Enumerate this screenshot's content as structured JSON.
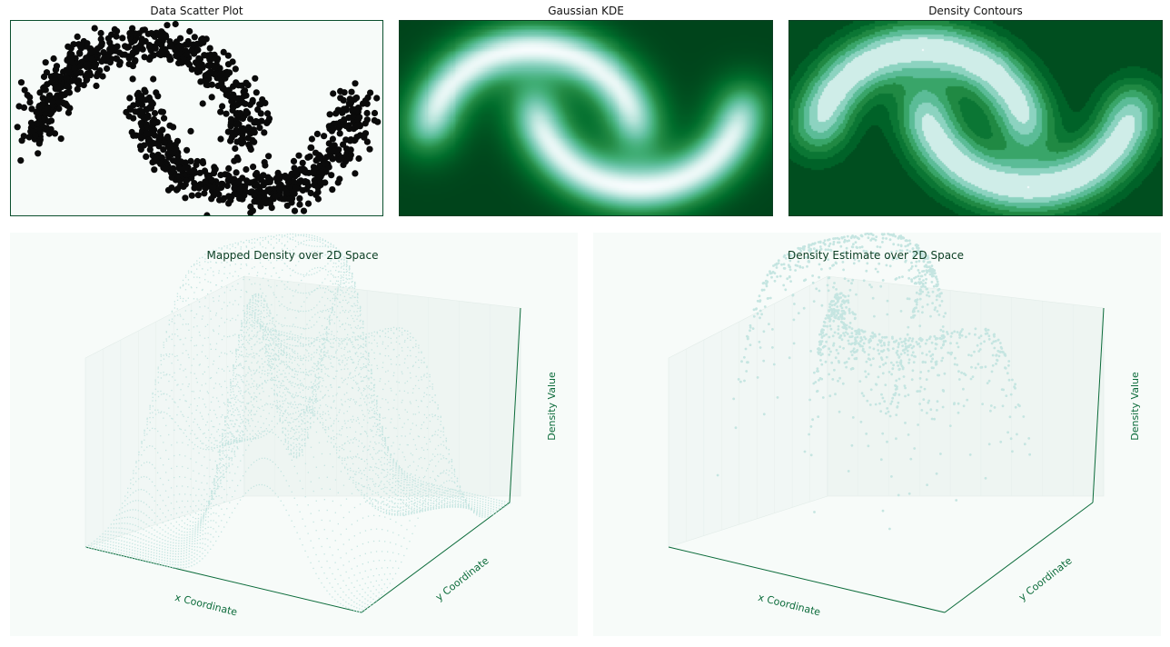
{
  "panels": {
    "scatter": {
      "title": "Data Scatter Plot"
    },
    "kde": {
      "title": "Gaussian KDE"
    },
    "contours": {
      "title": "Density Contours"
    },
    "surface": {
      "title": "Mapped Density over 2D Space",
      "xlabel": "x Coordinate",
      "ylabel": "y Coordinate",
      "zlabel": "Density Value"
    },
    "points3d": {
      "title": "Density Estimate over 2D Space",
      "xlabel": "x Coordinate",
      "ylabel": "y Coordinate",
      "zlabel": "Density Value"
    }
  },
  "colors": {
    "point": "#0a0a0a",
    "frame": "#0b4f2e",
    "kde_low": "#00441b",
    "kde_high": "#f7fcfd",
    "surface": "#c5e5e1"
  },
  "chart_data": [
    {
      "type": "scatter",
      "title": "Data Scatter Plot",
      "description": "two interleaving half-moon clusters",
      "series": [
        {
          "name": "",
          "shape": "upper moon",
          "center": [
            0,
            0
          ],
          "radius": 1.0,
          "angle_range_deg": [
            0,
            180
          ],
          "noise": 0.1
        },
        {
          "name": "",
          "shape": "lower moon",
          "center": [
            1,
            0.5
          ],
          "radius": 1.0,
          "angle_range_deg": [
            180,
            360
          ],
          "noise": 0.1
        }
      ],
      "xlim": [
        -1.25,
        2.25
      ],
      "ylim": [
        -0.75,
        1.25
      ],
      "grid": false
    },
    {
      "type": "heatmap",
      "title": "Gaussian KDE",
      "colormap": "BuGn_r",
      "xlim": [
        -1.25,
        2.25
      ],
      "ylim": [
        -0.75,
        1.25
      ]
    },
    {
      "type": "heatmap",
      "title": "Density Contours",
      "style": "filled contours",
      "colormap": "BuGn_r",
      "xlim": [
        -1.25,
        2.25
      ],
      "ylim": [
        -0.75,
        1.25
      ]
    },
    {
      "type": "surface",
      "title": "Mapped Density over 2D Space",
      "xlabel": "x Coordinate",
      "ylabel": "y Coordinate",
      "zlabel": "Density Value"
    },
    {
      "type": "scatter",
      "title": "Density Estimate over 2D Space",
      "xlabel": "x Coordinate",
      "ylabel": "y Coordinate",
      "zlabel": "Density Value"
    }
  ]
}
